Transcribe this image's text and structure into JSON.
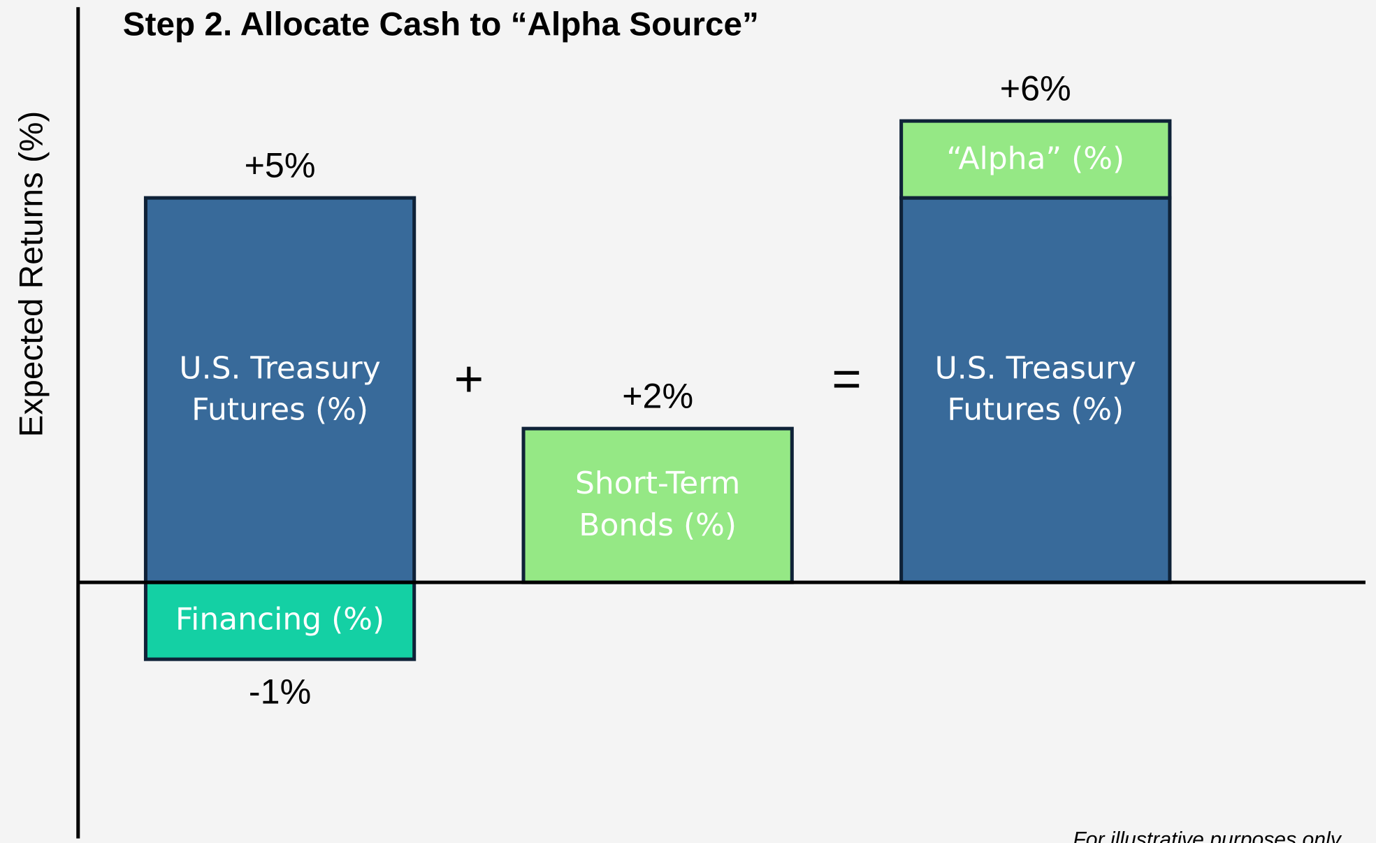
{
  "chart_data": {
    "type": "bar",
    "title": "Step 2. Allocate Cash to “Alpha Source”",
    "y_label": "Expected Returns (%)",
    "note": "For illustrative purposes only",
    "operators": [
      "+",
      "="
    ],
    "categories": [
      null,
      null,
      null
    ],
    "ylim": [
      -3.33,
      7.48
    ],
    "stacked": true,
    "series": [
      {
        "name": "U.S. Treasury Futures (%)",
        "color": "#386a9a",
        "values": [
          5,
          null,
          5
        ],
        "value_labels": [
          "+5%",
          null,
          null
        ]
      },
      {
        "name": "Financing (%)",
        "color": "#14d0a4",
        "values": [
          -1,
          null,
          null
        ],
        "value_labels": [
          "-1%",
          null,
          null
        ]
      },
      {
        "name": "Short-Term Bonds (%)",
        "color": "#95e885",
        "values": [
          null,
          2,
          null
        ],
        "value_labels": [
          null,
          "+2%",
          null
        ]
      },
      {
        "name": "“Alpha” (%)",
        "color": "#95e885",
        "values": [
          null,
          null,
          1
        ]
      }
    ],
    "totals": [
      null,
      null,
      6
    ],
    "total_labels": [
      null,
      null,
      "+6%"
    ]
  }
}
